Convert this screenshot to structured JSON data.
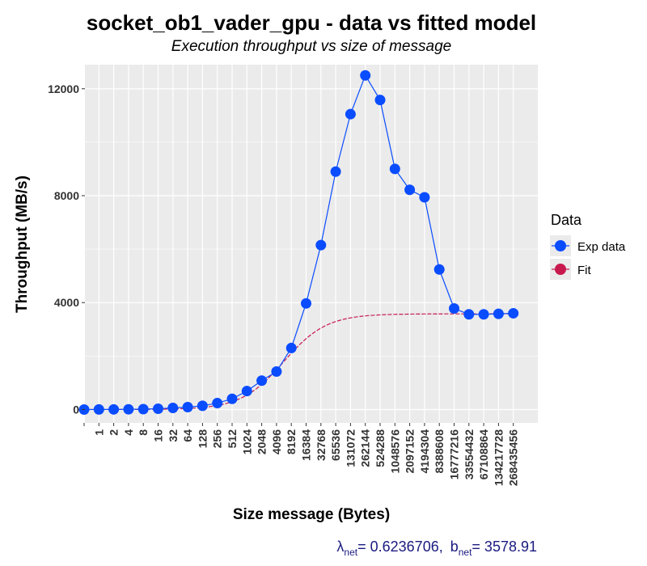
{
  "chart_data": {
    "type": "line",
    "title": "socket_ob1_vader_gpu - data vs fitted model",
    "subtitle": "Execution throughput vs size of message",
    "xlabel": "Size message (Bytes)",
    "ylabel": "Throughput (MB/s)",
    "x_scale": "log2",
    "categories": [
      "0",
      "1",
      "2",
      "4",
      "8",
      "16",
      "32",
      "64",
      "128",
      "256",
      "512",
      "1024",
      "2048",
      "4096",
      "8192",
      "16384",
      "32768",
      "65536",
      "131072",
      "262144",
      "524288",
      "1048576",
      "2097152",
      "4194304",
      "8388608",
      "16777216",
      "33554432",
      "67108864",
      "134217728",
      "268435456"
    ],
    "x_tick_labels": [
      "1",
      "2",
      "4",
      "8",
      "16",
      "32",
      "64",
      "128",
      "256",
      "512",
      "1024",
      "2048",
      "4096",
      "8192",
      "16384",
      "32768",
      "65536",
      "131072",
      "262144",
      "524288",
      "1048576",
      "2097152",
      "4194304",
      "8388608",
      "16777216",
      "33554432",
      "67108864",
      "134217728",
      "268435456"
    ],
    "y_ticks": [
      0,
      4000,
      8000,
      12000
    ],
    "y_tick_labels": [
      "0",
      "4000",
      "8000",
      "12000"
    ],
    "ylim": [
      -500,
      12900
    ],
    "grid": true,
    "legend": {
      "title": "Data",
      "position": "right",
      "entries": [
        "Exp data",
        "Fit"
      ]
    },
    "series": [
      {
        "name": "Exp data",
        "color": "#0a4cff",
        "style": "points+line",
        "values": [
          0,
          2,
          4,
          8,
          15,
          30,
          60,
          90,
          140,
          240,
          400,
          690,
          1080,
          1420,
          2300,
          3970,
          6150,
          8900,
          11050,
          12500,
          11580,
          9000,
          8220,
          7940,
          5240,
          3780,
          3560,
          3560,
          3580,
          3600
        ]
      },
      {
        "name": "Fit",
        "color": "#c8194f",
        "style": "dashed",
        "lambda_net": 0.6236706,
        "b_net": 3578.91
      }
    ],
    "annotation": {
      "lambda_symbol": "λ",
      "subscript": "net",
      "lambda_text": "= 0.6236706,",
      "b_symbol": "b",
      "b_text": "= 3578.91"
    }
  }
}
